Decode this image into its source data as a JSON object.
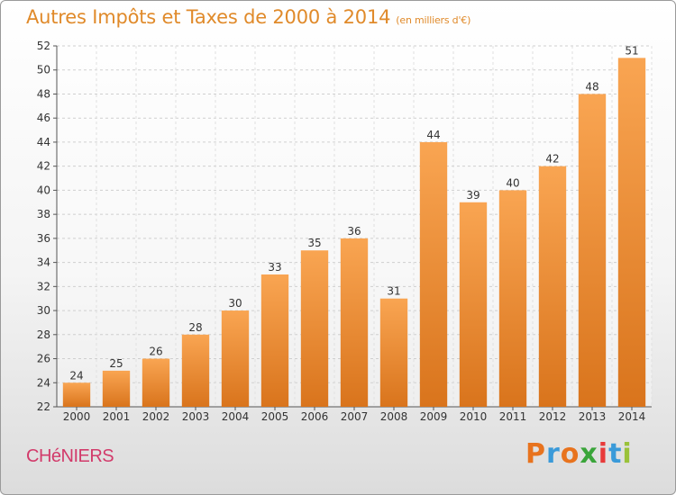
{
  "header": {
    "title": "Autres Impôts et Taxes de 2000 à 2014",
    "unit": "(en milliers d'€)"
  },
  "footer": {
    "commune": "CHéNIERS",
    "logo_letters": [
      "P",
      "r",
      "o",
      "x",
      "i",
      "t",
      "i"
    ],
    "logo_colors": [
      "#e8731e",
      "#3a9ad9",
      "#e8731e",
      "#3aa53a",
      "#e83a3a",
      "#3a9ad9",
      "#9ac23a"
    ]
  },
  "chart_data": {
    "type": "bar",
    "title": "Autres Impôts et Taxes de 2000 à 2014",
    "ylabel": "",
    "xlabel": "",
    "categories": [
      "2000",
      "2001",
      "2002",
      "2003",
      "2004",
      "2005",
      "2006",
      "2007",
      "2008",
      "2009",
      "2010",
      "2011",
      "2012",
      "2013",
      "2014"
    ],
    "values": [
      24,
      25,
      26,
      28,
      30,
      33,
      35,
      36,
      31,
      44,
      39,
      40,
      42,
      48,
      51
    ],
    "ylim": [
      22,
      52
    ],
    "yticks": [
      22,
      24,
      26,
      28,
      30,
      32,
      34,
      36,
      38,
      40,
      42,
      44,
      46,
      48,
      50,
      52
    ],
    "grid": true,
    "bar_color": "#f08a2a"
  }
}
